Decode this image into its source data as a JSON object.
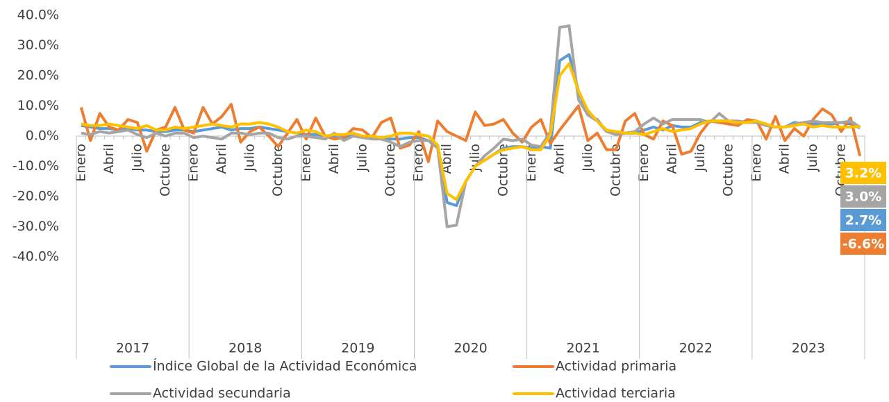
{
  "chart_data": {
    "type": "line",
    "categories": [
      "Enero",
      null,
      null,
      "Abril",
      null,
      null,
      "Julio",
      null,
      null,
      "Octubre",
      null,
      null,
      "Enero",
      null,
      null,
      "Abril",
      null,
      null,
      "Julio",
      null,
      null,
      "Octubre",
      null,
      null,
      "Enero",
      null,
      null,
      "Abril",
      null,
      null,
      "Julio",
      null,
      null,
      "Octubre",
      null,
      null,
      "Enero",
      null,
      null,
      "Abril",
      null,
      null,
      "Julio",
      null,
      null,
      "Octubre",
      null,
      null,
      "Enero",
      null,
      null,
      "Abril",
      null,
      null,
      "Julio",
      null,
      null,
      "Octubre",
      null,
      null,
      "Enero",
      null,
      null,
      "Abril",
      null,
      null,
      "Julio",
      null,
      null,
      "Octubre",
      null,
      null,
      "Enero",
      null,
      null,
      "Abril",
      null,
      null,
      "Julio",
      null,
      null,
      "Octubre",
      null,
      null
    ],
    "years": [
      "2017",
      "2018",
      "2019",
      "2020",
      "2021",
      "2022",
      "2023"
    ],
    "ylim": [
      -40,
      40
    ],
    "yticks": [
      {
        "value": -40,
        "label": "-40.0%"
      },
      {
        "value": -30,
        "label": "-30.0%"
      },
      {
        "value": -20,
        "label": "-20.0%"
      },
      {
        "value": -10,
        "label": "-10.0%"
      },
      {
        "value": 0,
        "label": "0.0%"
      },
      {
        "value": 10,
        "label": "10.0%"
      },
      {
        "value": 20,
        "label": "20.0%"
      },
      {
        "value": 30,
        "label": "30.0%"
      },
      {
        "value": 40,
        "label": "40.0%"
      }
    ],
    "grid": false,
    "legend": "bottom",
    "series": [
      {
        "name": "Índice Global de la Actividad Económica",
        "color": "#5b9bd5",
        "values": [
          3.5,
          3,
          2.5,
          2.5,
          2,
          2.5,
          2,
          2,
          1.5,
          1.5,
          2,
          2,
          1.5,
          2,
          2.5,
          3,
          2,
          2.5,
          2.5,
          3,
          2.5,
          2,
          1.5,
          1,
          0.5,
          0.5,
          0,
          0,
          -0.5,
          0.5,
          -0.5,
          -0.5,
          -0.5,
          -1,
          -1,
          -0.5,
          -0.5,
          -1.5,
          -3,
          -22,
          -23,
          -15,
          -10,
          -8,
          -6,
          -4,
          -3.5,
          -3.5,
          -4,
          -3.5,
          -4,
          25,
          27,
          15,
          7,
          5.5,
          1.5,
          1,
          1,
          1,
          2,
          3,
          2,
          3.5,
          3,
          3,
          4.5,
          5,
          5,
          5,
          4.5,
          4.5,
          4.5,
          3.5,
          3,
          3,
          4.5,
          4,
          4,
          4,
          4,
          4.5,
          4,
          2.7
        ],
        "value_labels": [
          null,
          null,
          null,
          null,
          null,
          null,
          null,
          null,
          null,
          null,
          null,
          null,
          null,
          null,
          null,
          null,
          null,
          null,
          null,
          null,
          null,
          null,
          null,
          null,
          null,
          null,
          null,
          null,
          null,
          null,
          null,
          null,
          null,
          null,
          null,
          null,
          null,
          null,
          null,
          null,
          null,
          null,
          null,
          null,
          null,
          null,
          null,
          null,
          null,
          null,
          null,
          null,
          null,
          null,
          null,
          null,
          null,
          null,
          null,
          null,
          null,
          null,
          null,
          null,
          null,
          null,
          null,
          null,
          null,
          null,
          null,
          null,
          null,
          null,
          null,
          null,
          null,
          null,
          null,
          null,
          null,
          null,
          null,
          "2.7%"
        ]
      },
      {
        "name": "Actividad primaria",
        "color": "#ed7d31",
        "values": [
          9.5,
          -1.5,
          7.5,
          3,
          2,
          5.5,
          4.5,
          -5,
          2,
          3,
          9.5,
          2,
          1,
          9.5,
          4,
          6.5,
          10.5,
          -2,
          1.5,
          3,
          0,
          -3.5,
          1,
          5.5,
          -1,
          6,
          0,
          -1,
          -0.5,
          2.5,
          2,
          -0.5,
          4.5,
          6,
          -4,
          -3,
          1.5,
          -8.5,
          5,
          1.5,
          0,
          -1.5,
          8,
          3.5,
          4,
          5.5,
          1,
          -2,
          3,
          5.5,
          -2.5,
          2,
          6,
          10,
          -1.5,
          1,
          -4.5,
          -4.5,
          5,
          7.5,
          0.5,
          -1,
          5,
          3.5,
          -6,
          -5,
          1,
          5,
          4.5,
          4,
          3.5,
          5.5,
          5,
          -1,
          6.5,
          -1.5,
          2.5,
          0,
          5.5,
          9,
          7,
          1.5,
          6,
          -6.6
        ],
        "value_labels": [
          null,
          null,
          null,
          null,
          null,
          null,
          null,
          null,
          null,
          null,
          null,
          null,
          null,
          null,
          null,
          null,
          null,
          null,
          null,
          null,
          null,
          null,
          null,
          null,
          null,
          null,
          null,
          null,
          null,
          null,
          null,
          null,
          null,
          null,
          null,
          null,
          null,
          null,
          null,
          null,
          null,
          null,
          null,
          null,
          null,
          null,
          null,
          null,
          null,
          null,
          null,
          null,
          null,
          null,
          null,
          null,
          null,
          null,
          null,
          null,
          null,
          null,
          null,
          null,
          null,
          null,
          null,
          null,
          null,
          null,
          null,
          null,
          null,
          null,
          null,
          null,
          null,
          null,
          null,
          null,
          null,
          null,
          null,
          "-6.6%"
        ]
      },
      {
        "name": "Actividad secundaria",
        "color": "#a5a5a5",
        "values": [
          1,
          0.5,
          1.5,
          1,
          1.5,
          2,
          0.5,
          -0.5,
          1,
          0,
          1,
          1,
          -0.5,
          0,
          -0.5,
          -1,
          1,
          1,
          0.5,
          1,
          1,
          -0.5,
          -1,
          0,
          0,
          -0.5,
          -1,
          1,
          -1.5,
          0,
          -0.5,
          -1,
          -1,
          -2,
          -3.5,
          -2,
          -1.5,
          -1.5,
          -4,
          -30,
          -29.5,
          -15,
          -10,
          -6.5,
          -4,
          -1,
          -1.5,
          -1,
          -3,
          -3.5,
          1.5,
          36,
          36.5,
          12,
          7,
          5,
          1.5,
          0.5,
          1,
          1.5,
          4,
          6,
          4,
          5.5,
          5.5,
          5.5,
          5.5,
          4.5,
          7.5,
          5,
          5,
          4.5,
          4.5,
          3.5,
          3,
          3,
          4,
          4.5,
          5,
          4.5,
          4.5,
          4.5,
          5,
          3.0
        ],
        "value_labels": [
          null,
          null,
          null,
          null,
          null,
          null,
          null,
          null,
          null,
          null,
          null,
          null,
          null,
          null,
          null,
          null,
          null,
          null,
          null,
          null,
          null,
          null,
          null,
          null,
          null,
          null,
          null,
          null,
          null,
          null,
          null,
          null,
          null,
          null,
          null,
          null,
          null,
          null,
          null,
          null,
          null,
          null,
          null,
          null,
          null,
          null,
          null,
          null,
          null,
          null,
          null,
          null,
          null,
          null,
          null,
          null,
          null,
          null,
          null,
          null,
          null,
          null,
          null,
          null,
          null,
          null,
          null,
          null,
          null,
          null,
          null,
          null,
          null,
          null,
          null,
          null,
          null,
          null,
          null,
          null,
          null,
          null,
          null,
          "3.0%"
        ]
      },
      {
        "name": "Actividad terciaria",
        "color": "#ffc000",
        "values": [
          4,
          3.5,
          3.5,
          4,
          3.5,
          3,
          2.5,
          3.5,
          2,
          2,
          3,
          2.5,
          3,
          3.5,
          4,
          3.5,
          3,
          4,
          4,
          4.5,
          4,
          3,
          1.5,
          1,
          2,
          1.5,
          0,
          0.5,
          0.5,
          1,
          0,
          0,
          -0.5,
          0,
          1,
          1,
          0.5,
          0,
          -3,
          -19,
          -21,
          -15,
          -10,
          -8,
          -6,
          -4.5,
          -4,
          -3.5,
          -4.5,
          -4.5,
          0.5,
          20,
          24,
          15,
          8.5,
          5,
          2,
          1.5,
          1,
          1,
          0.5,
          1.5,
          2.5,
          1.5,
          2,
          2.5,
          4,
          5,
          5,
          5,
          4.5,
          4.5,
          5,
          4,
          3,
          3,
          3.5,
          4,
          3,
          3.5,
          3,
          3,
          3,
          3.2
        ],
        "value_labels": [
          null,
          null,
          null,
          null,
          null,
          null,
          null,
          null,
          null,
          null,
          null,
          null,
          null,
          null,
          null,
          null,
          null,
          null,
          null,
          null,
          null,
          null,
          null,
          null,
          null,
          null,
          null,
          null,
          null,
          null,
          null,
          null,
          null,
          null,
          null,
          null,
          null,
          null,
          null,
          null,
          null,
          null,
          null,
          null,
          null,
          null,
          null,
          null,
          null,
          null,
          null,
          null,
          null,
          null,
          null,
          null,
          null,
          null,
          null,
          null,
          null,
          null,
          null,
          null,
          null,
          null,
          null,
          null,
          null,
          null,
          null,
          null,
          null,
          null,
          null,
          null,
          null,
          null,
          null,
          null,
          null,
          null,
          null,
          "3.2%"
        ]
      }
    ]
  }
}
